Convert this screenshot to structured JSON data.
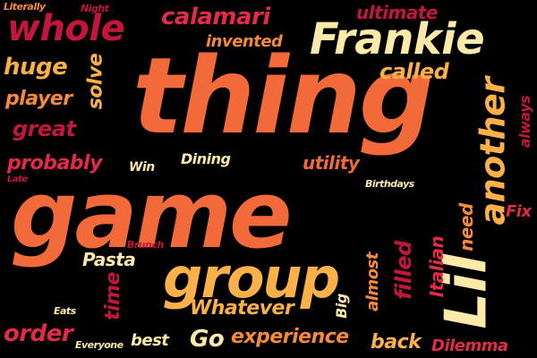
{
  "palette": {
    "background": "#000000",
    "deep_red": "#c4163c",
    "crimson": "#e32b48",
    "orange_red": "#f26a3a",
    "orange": "#f78a3a",
    "amber": "#fbb04a",
    "pale_yellow": "#fde9a8"
  },
  "words": [
    {
      "id": "thing",
      "text": "thing",
      "color": "#f26a3a"
    },
    {
      "id": "game",
      "text": "game",
      "color": "#f26a3a"
    },
    {
      "id": "group",
      "text": "group",
      "color": "#fbb04a"
    },
    {
      "id": "frankie",
      "text": "Frankie",
      "color": "#fde9a8"
    },
    {
      "id": "whole",
      "text": "whole",
      "color": "#c4163c"
    },
    {
      "id": "another",
      "text": "another",
      "color": "#fbb04a"
    },
    {
      "id": "lil",
      "text": "Lil",
      "color": "#fde9a8"
    },
    {
      "id": "calamari",
      "text": "calamari",
      "color": "#e32b48"
    },
    {
      "id": "ultimate",
      "text": "ultimate",
      "color": "#c4163c"
    },
    {
      "id": "invented",
      "text": "invented",
      "color": "#f78a3a"
    },
    {
      "id": "called",
      "text": "called",
      "color": "#fbb04a"
    },
    {
      "id": "huge",
      "text": "huge",
      "color": "#fbb04a"
    },
    {
      "id": "solve",
      "text": "solve",
      "color": "#fbb04a"
    },
    {
      "id": "player",
      "text": "player",
      "color": "#f78a3a"
    },
    {
      "id": "great",
      "text": "great",
      "color": "#c4163c"
    },
    {
      "id": "probably",
      "text": "probably",
      "color": "#e32b48"
    },
    {
      "id": "literally",
      "text": "Literally",
      "color": "#f78a3a"
    },
    {
      "id": "night",
      "text": "Night",
      "color": "#c4163c"
    },
    {
      "id": "always",
      "text": "always",
      "color": "#c4163c"
    },
    {
      "id": "utility",
      "text": "utility",
      "color": "#f26a3a"
    },
    {
      "id": "dining",
      "text": "Dining",
      "color": "#fde9a8"
    },
    {
      "id": "win",
      "text": "Win",
      "color": "#fde9a8"
    },
    {
      "id": "late",
      "text": "Late",
      "color": "#c4163c"
    },
    {
      "id": "birthdays",
      "text": "Birthdays",
      "color": "#fde9a8"
    },
    {
      "id": "fix",
      "text": "Fix",
      "color": "#e32b48"
    },
    {
      "id": "need",
      "text": "need",
      "color": "#f78a3a"
    },
    {
      "id": "filled",
      "text": "filled",
      "color": "#c4163c"
    },
    {
      "id": "italian",
      "text": "Italian",
      "color": "#e32b48"
    },
    {
      "id": "almost",
      "text": "almost",
      "color": "#f78a3a"
    },
    {
      "id": "brunch",
      "text": "Brunch",
      "color": "#c4163c"
    },
    {
      "id": "pasta",
      "text": "Pasta",
      "color": "#fde9a8"
    },
    {
      "id": "time",
      "text": "time",
      "color": "#c4163c"
    },
    {
      "id": "eats",
      "text": "Eats",
      "color": "#fde9a8"
    },
    {
      "id": "whatever",
      "text": "Whatever",
      "color": "#fbb04a"
    },
    {
      "id": "big",
      "text": "Big",
      "color": "#fde9a8"
    },
    {
      "id": "order",
      "text": "order",
      "color": "#e32b48"
    },
    {
      "id": "everyone",
      "text": "Everyone",
      "color": "#fde9a8"
    },
    {
      "id": "best",
      "text": "best",
      "color": "#fde9a8"
    },
    {
      "id": "go",
      "text": "Go",
      "color": "#fde9a8"
    },
    {
      "id": "experience",
      "text": "experience",
      "color": "#f78a3a"
    },
    {
      "id": "back",
      "text": "back",
      "color": "#fbb04a"
    },
    {
      "id": "dilemma",
      "text": "Dilemma",
      "color": "#e32b48"
    }
  ]
}
